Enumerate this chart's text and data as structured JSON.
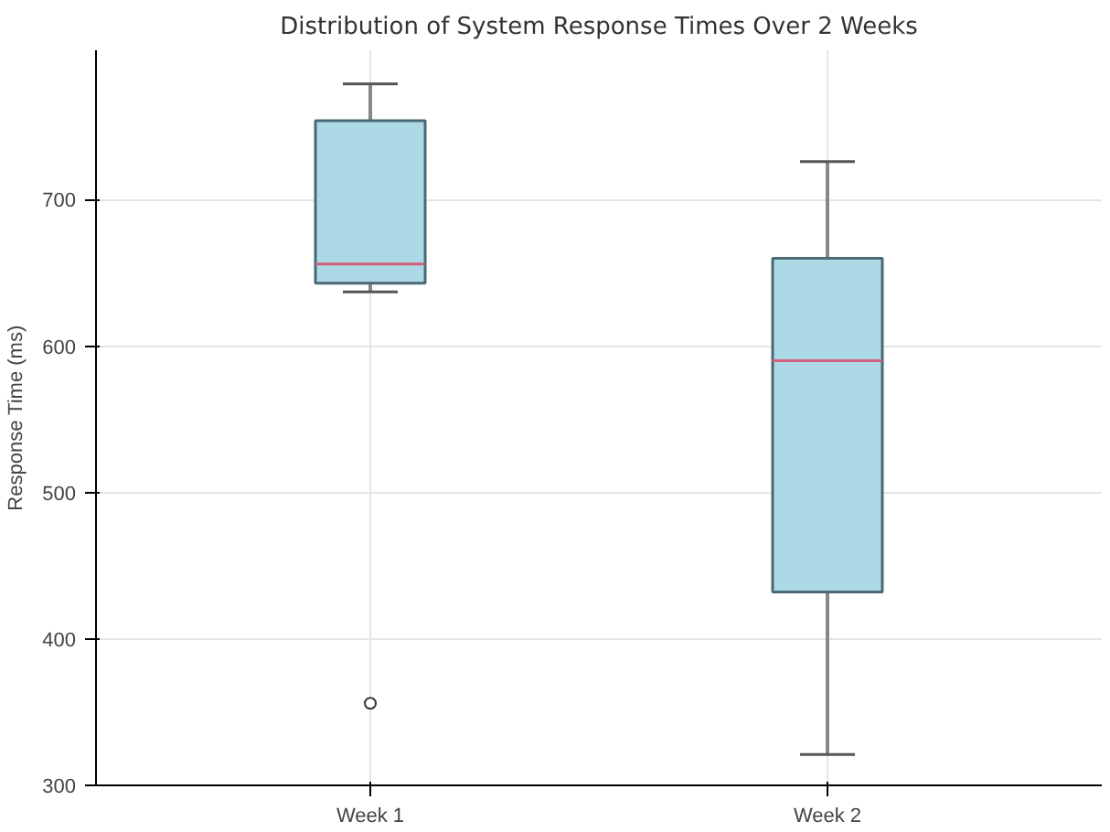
{
  "chart_data": {
    "type": "box",
    "title": "Distribution of System Response Times Over 2 Weeks",
    "ylabel": "Response Time (ms)",
    "categories": [
      "Week 1",
      "Week 2"
    ],
    "boxes": [
      {
        "low": 637,
        "q1": 643,
        "median": 656,
        "q3": 754,
        "high": 779,
        "outliers": [
          356
        ]
      },
      {
        "low": 321,
        "q1": 432,
        "median": 590,
        "q3": 660,
        "high": 726
      }
    ],
    "color": "#add8e6",
    "ylim": [
      300,
      802
    ],
    "yticks": [
      300,
      400,
      500,
      600,
      700
    ],
    "grid": true
  }
}
